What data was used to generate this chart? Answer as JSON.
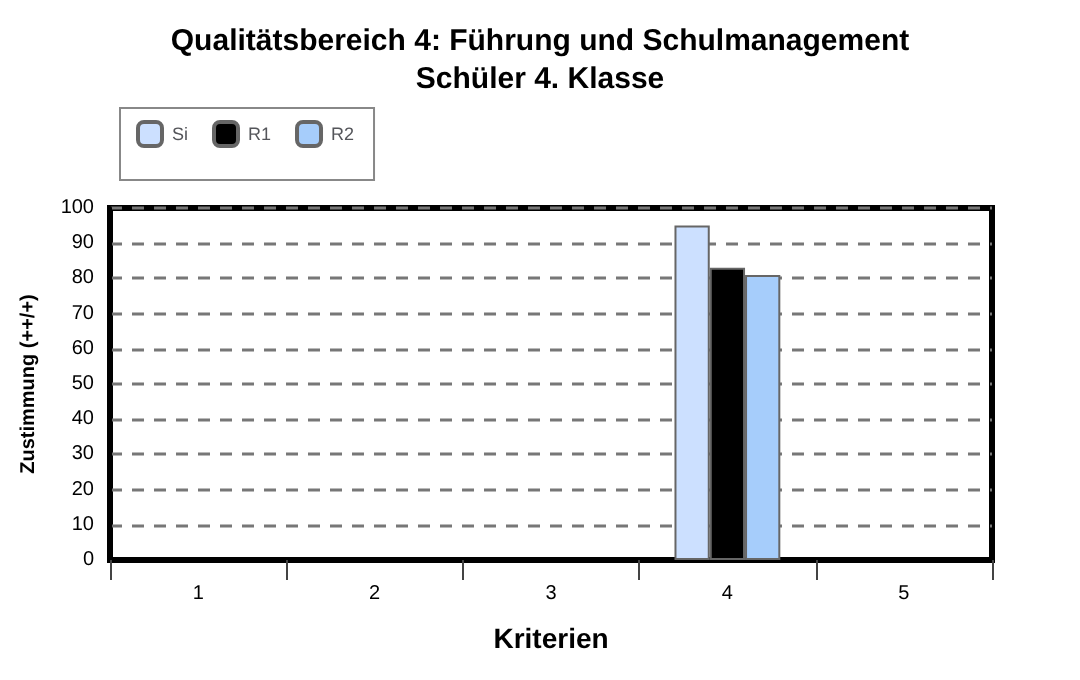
{
  "chart_data": {
    "type": "bar",
    "title": "Qualitätsbereich 4: Führung und Schulmanagement",
    "subtitle": "Schüler 4. Klasse",
    "xlabel": "Kriterien",
    "ylabel": "Zustimmung (++/+)",
    "categories": [
      "1",
      "2",
      "3",
      "4",
      "5"
    ],
    "series": [
      {
        "name": "Si",
        "color": "#cce0ff",
        "values": [
          null,
          null,
          null,
          95,
          null
        ]
      },
      {
        "name": "R1",
        "color": "#000000",
        "values": [
          null,
          null,
          null,
          83,
          null
        ]
      },
      {
        "name": "R2",
        "color": "#a6cdfb",
        "values": [
          null,
          null,
          null,
          81,
          null
        ]
      }
    ],
    "ylim": [
      0,
      100
    ],
    "yticks": [
      0,
      10,
      20,
      30,
      40,
      50,
      60,
      70,
      80,
      90,
      100
    ],
    "grid": "y",
    "line_style": "dashed",
    "legend": "top left"
  }
}
